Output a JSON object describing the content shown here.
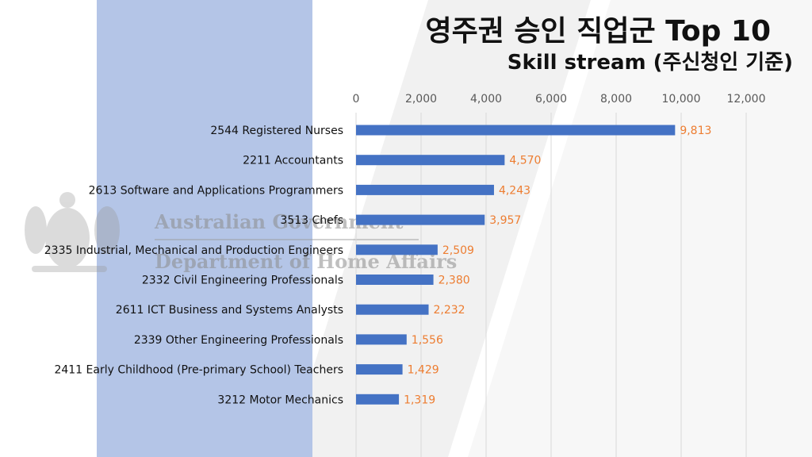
{
  "header": {
    "title": "영주권 승인 직업군 Top 10",
    "subtitle": "Skill stream (주신청인 기준)"
  },
  "watermark": {
    "line1": "Australian Government",
    "line2": "Department of Home Affairs"
  },
  "colors": {
    "bar": "#4472c4",
    "value_label": "#ed7d31",
    "left_band": "#b4c5e7",
    "diagonal_band": "#ececec"
  },
  "chart_data": {
    "type": "bar",
    "orientation": "horizontal",
    "title": "영주권 승인 직업군 Top 10",
    "subtitle": "Skill stream (주신청인 기준)",
    "xlabel": "",
    "ylabel": "",
    "xlim": [
      0,
      12000
    ],
    "xticks": [
      0,
      2000,
      4000,
      6000,
      8000,
      10000,
      12000
    ],
    "xtick_labels": [
      "0",
      "2,000",
      "4,000",
      "6,000",
      "8,000",
      "10,000",
      "12,000"
    ],
    "axis_position": "top",
    "grid": true,
    "legend": "none",
    "categories": [
      "2544 Registered Nurses",
      "2211 Accountants",
      "2613 Software and Applications Programmers",
      "3513 Chefs",
      "2335 Industrial, Mechanical and Production Engineers",
      "2332 Civil Engineering Professionals",
      "2611 ICT Business and Systems Analysts",
      "2339 Other Engineering Professionals",
      "2411 Early Childhood (Pre-primary School) Teachers",
      "3212 Motor Mechanics"
    ],
    "values": [
      9813,
      4570,
      4243,
      3957,
      2509,
      2380,
      2232,
      1556,
      1429,
      1319
    ],
    "value_labels": [
      "9,813",
      "4,570",
      "4,243",
      "3,957",
      "2,509",
      "2,380",
      "2,232",
      "1,556",
      "1,429",
      "1,319"
    ]
  }
}
